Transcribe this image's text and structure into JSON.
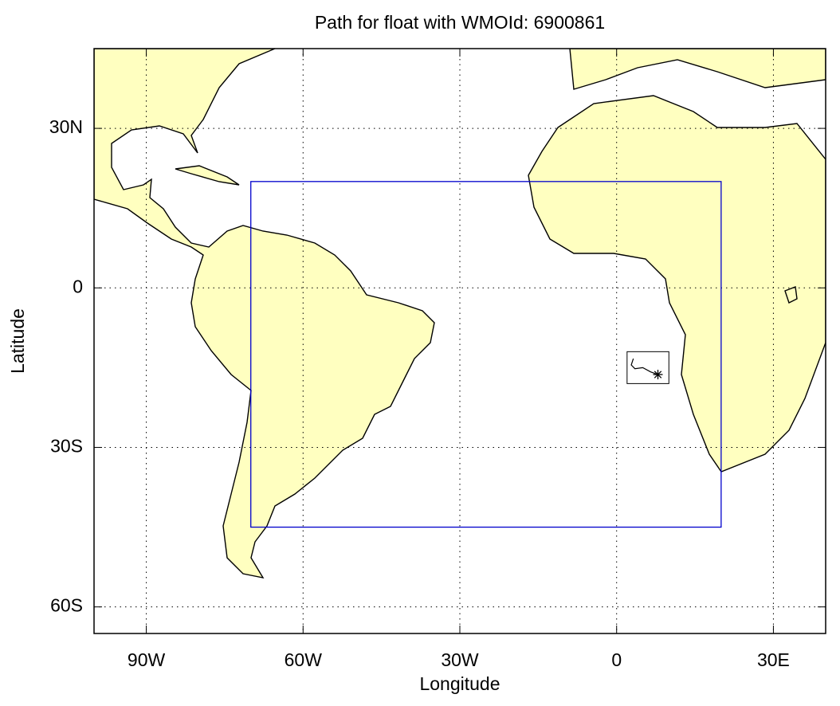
{
  "chart_data": {
    "type": "map",
    "title": "Path for float with WMOId: 6900861",
    "x_label": "Longitude",
    "y_label": "Latitude",
    "xlim": [
      -100,
      40
    ],
    "ylim": [
      -65,
      45
    ],
    "xticks": [
      {
        "value": -90,
        "label": "90W"
      },
      {
        "value": -60,
        "label": "60W"
      },
      {
        "value": -30,
        "label": "30W"
      },
      0,
      {
        "value": 30,
        "label": "30E"
      }
    ],
    "yticks": [
      {
        "value": 30,
        "label": "30N"
      },
      0,
      {
        "value": -30,
        "label": "30S"
      },
      {
        "value": -60,
        "label": "60S"
      }
    ],
    "grid": true,
    "land_color": "#ffffc0",
    "region": {
      "color": "#0000cc",
      "lon": [
        -70,
        20
      ],
      "lat": [
        -45,
        20
      ]
    },
    "track_box": {
      "color": "#000000",
      "lon": [
        2,
        10
      ],
      "lat": [
        -18,
        -12
      ]
    },
    "track": {
      "color": "#000000",
      "lon": [
        3.2,
        2.8,
        3.5,
        5,
        6.5,
        7.9
      ],
      "lat": [
        -13.3,
        -14.5,
        -15.2,
        -15.0,
        -15.8,
        -16.3
      ]
    }
  }
}
